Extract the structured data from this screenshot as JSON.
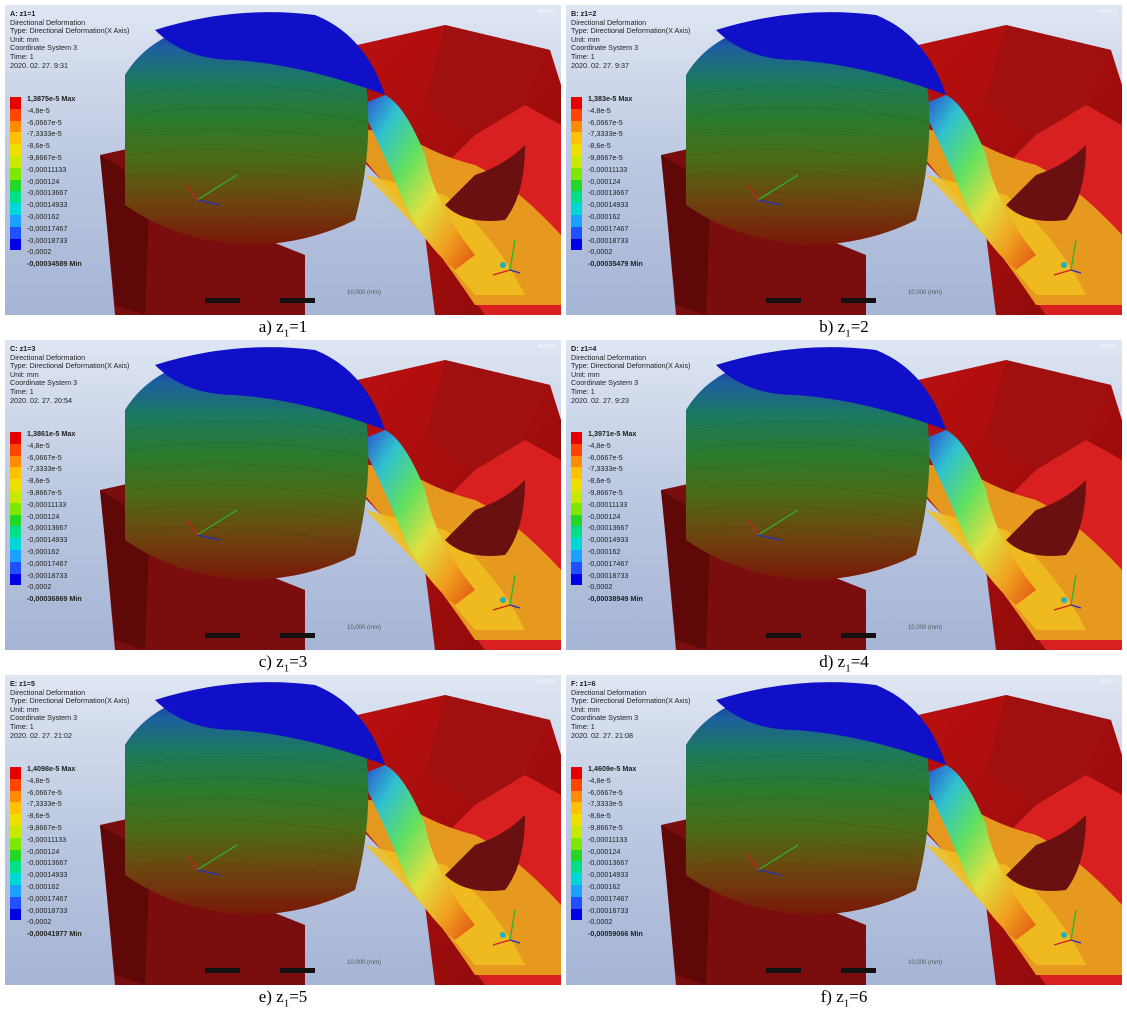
{
  "legend_labels": [
    "-4,8e-5",
    "-6,0667e-5",
    "-7,3333e-5",
    "-8,6e-5",
    "-9,8667e-5",
    "-0,00011133",
    "-0,000124",
    "-0,00013667",
    "-0,00014933",
    "-0,000162",
    "-0,00017467",
    "-0,00018733",
    "-0,0002"
  ],
  "legend_colors": [
    "#e60000",
    "#ff4500",
    "#ff8c00",
    "#ffc000",
    "#f0e000",
    "#c8e800",
    "#7ee800",
    "#22d822",
    "#00e08a",
    "#00d8d8",
    "#1aa0ff",
    "#2050ff",
    "#0000e6"
  ],
  "logo_text": "ANSYS",
  "panels": [
    {
      "head": "A: z1=1",
      "type": "Directional Deformation",
      "subtype": "Type: Directional Deformation(X Axis)",
      "unit": "Unit: mm",
      "cs": "Coordinate System 3",
      "time": "Time: 1",
      "date": "2020. 02. 27. 9:31",
      "max": "1,3875e-5 Max",
      "min": "-0,00034589 Min",
      "scale": "10,000 (mm)",
      "caption_letter": "a) z",
      "caption_sub": "1",
      "caption_val": "=1"
    },
    {
      "head": "B: z1=2",
      "type": "Directional Deformation",
      "subtype": "Type: Directional Deformation(X Axis)",
      "unit": "Unit: mm",
      "cs": "Coordinate System 3",
      "time": "Time: 1",
      "date": "2020. 02. 27. 9:37",
      "max": "1,383e-5 Max",
      "min": "-0,00035479 Min",
      "scale": "10,000 (mm)",
      "caption_letter": "b) z",
      "caption_sub": "1",
      "caption_val": "=2"
    },
    {
      "head": "C: z1=3",
      "type": "Directional Deformation",
      "subtype": "Type: Directional Deformation(X Axis)",
      "unit": "Unit: mm",
      "cs": "Coordinate System 3",
      "time": "Time: 1",
      "date": "2020. 02. 27. 20:54",
      "max": "1,3861e-5 Max",
      "min": "-0,00036869 Min",
      "scale": "10,000 (mm)",
      "caption_letter": "c) z",
      "caption_sub": "1",
      "caption_val": "=3"
    },
    {
      "head": "D: z1=4",
      "type": "Directional Deformation",
      "subtype": "Type: Directional Deformation(X Axis)",
      "unit": "Unit: mm",
      "cs": "Coordinate System 3",
      "time": "Time: 1",
      "date": "2020. 02. 27. 9:23",
      "max": "1,3971e-5 Max",
      "min": "-0,00038949 Min",
      "scale": "10,000 (mm)",
      "caption_letter": "d) z",
      "caption_sub": "1",
      "caption_val": "=4"
    },
    {
      "head": "E: z1=5",
      "type": "Directional Deformation",
      "subtype": "Type: Directional Deformation(X Axis)",
      "unit": "Unit: mm",
      "cs": "Coordinate System 3",
      "time": "Time: 1",
      "date": "2020. 02. 27. 21:02",
      "max": "1,4098e-5 Max",
      "min": "-0,00041977 Min",
      "scale": "10,000 (mm)",
      "caption_letter": "e) z",
      "caption_sub": "1",
      "caption_val": "=5"
    },
    {
      "head": "F: z1=6",
      "type": "Directional Deformation",
      "subtype": "Type: Directional Deformation(X Axis)",
      "unit": "Unit: mm",
      "cs": "Coordinate System 3",
      "time": "Time: 1",
      "date": "2020. 02. 27. 21:08",
      "max": "1,4609e-5 Max",
      "min": "-0,00059066 Min",
      "scale": "10,000 (mm)",
      "caption_letter": "f) z",
      "caption_sub": "1",
      "caption_val": "=6"
    }
  ]
}
